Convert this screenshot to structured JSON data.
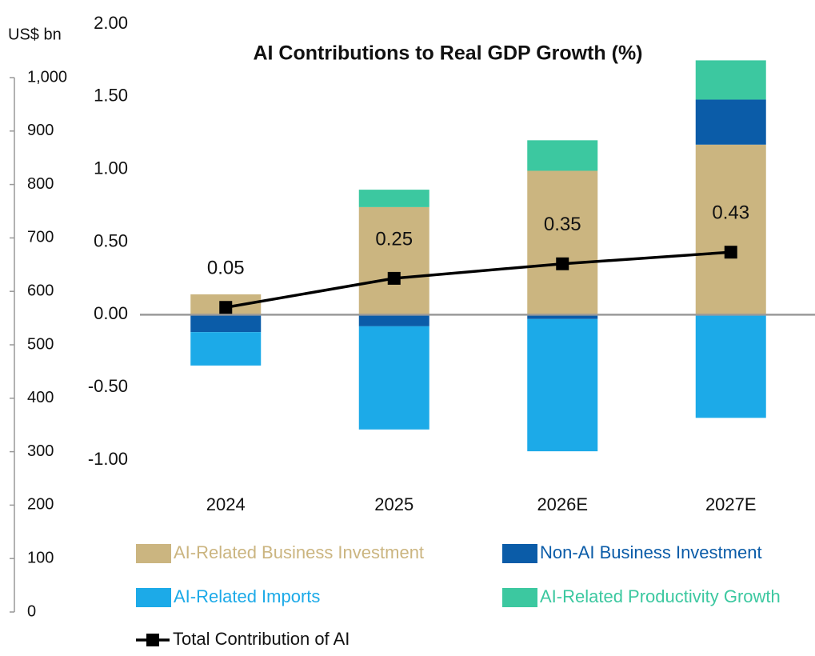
{
  "chart_data": {
    "type": "stacked_bar_line",
    "title": "AI Contributions to Real GDP Growth (%)",
    "y2label": "US$ bn",
    "categories": [
      "2024",
      "2025",
      "2026E",
      "2027E"
    ],
    "series": [
      {
        "name": "AI-Related Business Investment",
        "color": "#cbb580",
        "values": [
          0.14,
          0.74,
          0.99,
          1.17
        ]
      },
      {
        "name": "Non-AI Business Investment",
        "color": "#0b5ca8",
        "values": [
          -0.12,
          -0.08,
          -0.03,
          0.31
        ]
      },
      {
        "name": "AI-Related Imports",
        "color": "#1caae8",
        "values": [
          -0.23,
          -0.71,
          -0.91,
          -0.71
        ]
      },
      {
        "name": "AI-Related Productivity Growth",
        "color": "#3cc8a0",
        "values": [
          0,
          0.12,
          0.21,
          0.27
        ]
      }
    ],
    "line": {
      "name": "Total Contribution of AI",
      "color": "#000000",
      "values": [
        0.05,
        0.25,
        0.35,
        0.43
      ]
    },
    "ylim": [
      -1,
      2
    ],
    "yticks": [
      {
        "value": -1,
        "label": "-1.00"
      },
      {
        "value": -0.5,
        "label": "-0.50"
      },
      {
        "value": 0,
        "label": "0.00"
      },
      {
        "value": 0.5,
        "label": "0.50"
      },
      {
        "value": 1,
        "label": "1.00"
      },
      {
        "value": 1.5,
        "label": "1.50"
      },
      {
        "value": 2,
        "label": "2.00"
      }
    ],
    "y2lim": [
      0,
      1000
    ],
    "y2ticks": [
      0,
      100,
      200,
      300,
      400,
      500,
      600,
      700,
      800,
      900,
      {
        "value": 1000,
        "label": "1,000"
      }
    ]
  }
}
